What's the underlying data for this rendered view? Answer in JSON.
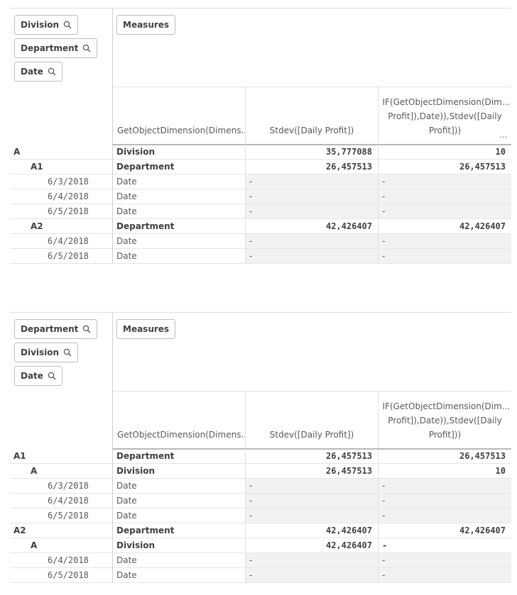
{
  "pivots": [
    {
      "dimension_chips": [
        "Division",
        "Department",
        "Date"
      ],
      "measures_chip": "Measures",
      "column_headers": [
        "GetObjectDimension(Dimens...",
        "Stdev([Daily Profit])",
        "IF(GetObjectDimension(Dim... Profit]),Date)),Stdev([Daily Profit]))",
        "..."
      ],
      "rows": [
        {
          "label": "A",
          "dim": "Division",
          "stdev": "35,777088",
          "if": "10"
        },
        {
          "label": "A1",
          "dim": "Department",
          "stdev": "26,457513",
          "if": "26,457513"
        },
        {
          "label": "6/3/2018",
          "dim": "Date",
          "stdev": "-",
          "if": "-"
        },
        {
          "label": "6/4/2018",
          "dim": "Date",
          "stdev": "-",
          "if": "-"
        },
        {
          "label": "6/5/2018",
          "dim": "Date",
          "stdev": "-",
          "if": "-"
        },
        {
          "label": "A2",
          "dim": "Department",
          "stdev": "42,426407",
          "if": "42,426407"
        },
        {
          "label": "6/4/2018",
          "dim": "Date",
          "stdev": "-",
          "if": "-"
        },
        {
          "label": "6/5/2018",
          "dim": "Date",
          "stdev": "-",
          "if": "-"
        }
      ]
    },
    {
      "dimension_chips": [
        "Department",
        "Division",
        "Date"
      ],
      "measures_chip": "Measures",
      "column_headers": [
        "GetObjectDimension(Dimens...",
        "Stdev([Daily Profit])",
        "IF(GetObjectDimension(Dim... Profit]),Date)),Stdev([Daily Profit]))"
      ],
      "rows": [
        {
          "label": "A1",
          "dim": "Department",
          "stdev": "26,457513",
          "if": "26,457513"
        },
        {
          "label": "A",
          "dim": "Division",
          "stdev": "26,457513",
          "if": "10"
        },
        {
          "label": "6/3/2018",
          "dim": "Date",
          "stdev": "-",
          "if": "-"
        },
        {
          "label": "6/4/2018",
          "dim": "Date",
          "stdev": "-",
          "if": "-"
        },
        {
          "label": "6/5/2018",
          "dim": "Date",
          "stdev": "-",
          "if": "-"
        },
        {
          "label": "A2",
          "dim": "Department",
          "stdev": "42,426407",
          "if": "42,426407"
        },
        {
          "label": "A",
          "dim": "Division",
          "stdev": "42,426407",
          "if": "-"
        },
        {
          "label": "6/4/2018",
          "dim": "Date",
          "stdev": "-",
          "if": "-"
        },
        {
          "label": "6/5/2018",
          "dim": "Date",
          "stdev": "-",
          "if": "-"
        }
      ]
    }
  ]
}
